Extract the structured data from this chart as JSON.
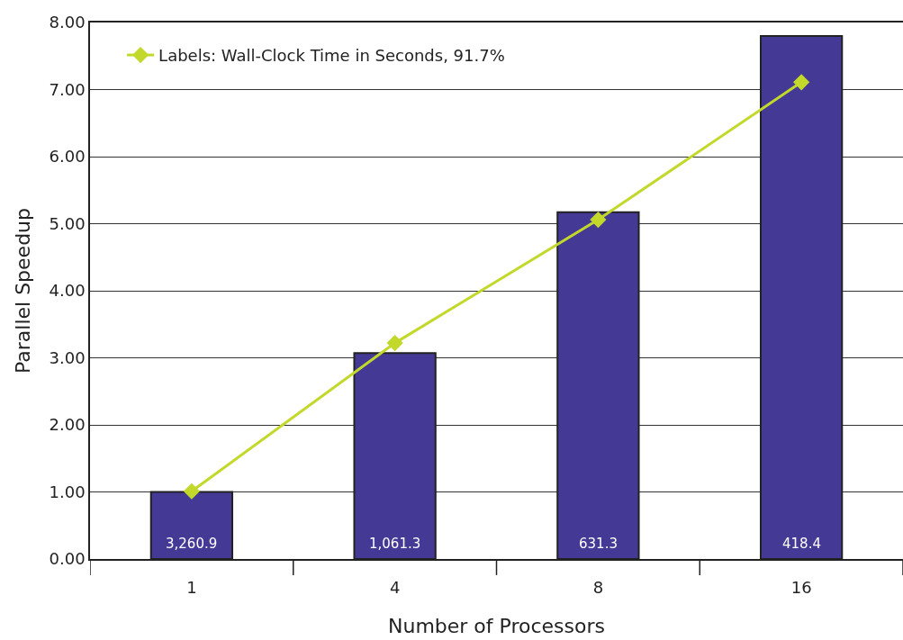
{
  "chart_data": {
    "type": "bar",
    "xlabel": "Number of Processors",
    "ylabel": "Parallel Speedup",
    "categories": [
      "1",
      "4",
      "8",
      "16"
    ],
    "series": [
      {
        "color": "#443a96",
        "values": [
          1.0,
          3.07,
          5.17,
          7.8
        ]
      },
      {
        "type": "line",
        "name": "Labels: Wall-Clock Time in Seconds, 91.7%",
        "color": "#c2d82a",
        "values": [
          1.01,
          3.22,
          5.06,
          7.11
        ],
        "marker": "diamond"
      }
    ],
    "annotations": [
      {
        "text": "3,260.9",
        "x": "1",
        "y": 0
      },
      {
        "text": "1,061.3",
        "x": "4",
        "y": 0
      },
      {
        "text": "631.3",
        "x": "8",
        "y": 0
      },
      {
        "text": "418.4",
        "x": "16",
        "y": 0
      }
    ],
    "ylim": [
      0,
      8
    ],
    "yticks": [
      {
        "value": 0,
        "label": "0.00"
      },
      {
        "value": 1,
        "label": "1.00"
      },
      {
        "value": 2,
        "label": "2.00"
      },
      {
        "value": 3,
        "label": "3.00"
      },
      {
        "value": 4,
        "label": "4.00"
      },
      {
        "value": 5,
        "label": "5.00"
      },
      {
        "value": 6,
        "label": "6.00"
      },
      {
        "value": 7,
        "label": "7.00"
      },
      {
        "value": 8,
        "label": "8.00"
      }
    ],
    "grid": "y",
    "legend": "top left"
  }
}
